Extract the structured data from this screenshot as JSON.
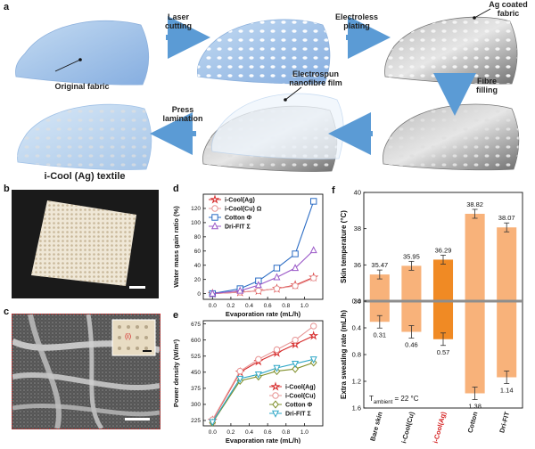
{
  "colors": {
    "fabric_blue": "#a9c6e8",
    "arrow_blue": "#5b9bd5",
    "metal_gray": "#8d8d8d",
    "bar_light": "#f8b27a",
    "bar_accent": "#f08a24",
    "red_dotted": "#d42020"
  },
  "panels": {
    "a": "a",
    "b": "b",
    "c": "c",
    "d": "d",
    "e": "e",
    "f": "f"
  },
  "panel_a": {
    "original_fabric": "Original fabric",
    "laser_cutting": "Laser cutting",
    "electroless_plating": "Electroless plating",
    "ag_coated_fabric": "Ag coated fabric",
    "fibre_filling": "Fibre filling",
    "electrospun_film": "Electrospun nanofibre film",
    "press_lamination": "Press lamination",
    "icool_textile": "i-Cool (Ag) textile"
  },
  "panel_c": {
    "inset_label": "(i)"
  },
  "chart_data": [
    {
      "id": "d",
      "type": "line",
      "title": "",
      "xlabel": "Evaporation rate (mL/h)",
      "ylabel": "Water mass gain ratio (%)",
      "xlim": [
        -0.1,
        1.2
      ],
      "ylim": [
        -8,
        140
      ],
      "xticks": [
        "0.0",
        "0.2",
        "0.4",
        "0.6",
        "0.8",
        "1.0"
      ],
      "yticks": [
        "0",
        "20",
        "40",
        "60",
        "80",
        "100",
        "120"
      ],
      "x": [
        0.0,
        0.3,
        0.5,
        0.7,
        0.9,
        1.1
      ],
      "series": [
        {
          "name": "i-Cool(Ag)",
          "marker": "star",
          "color": "#d62c2c",
          "filled": false,
          "values": [
            0,
            2,
            4,
            7,
            12,
            23
          ]
        },
        {
          "name": "i-Cool(Cu)",
          "marker": "circle",
          "color": "#e79494",
          "filled": false,
          "values": [
            0,
            2,
            4,
            7,
            11,
            22
          ]
        },
        {
          "name": "Cotton",
          "marker": "square",
          "color": "#2b6cc4",
          "filled": false,
          "values": [
            0,
            7,
            18,
            36,
            56,
            130
          ]
        },
        {
          "name": "Dri-FIT",
          "marker": "triangle",
          "color": "#9b59c8",
          "filled": false,
          "values": [
            0,
            4,
            12,
            23,
            36,
            61
          ]
        }
      ],
      "legend_suffixes": [
        "",
        "Ω",
        "Φ",
        "Σ"
      ]
    },
    {
      "id": "e",
      "type": "line",
      "title": "",
      "xlabel": "Evaporation rate (mL/h)",
      "ylabel": "Power density (W/m²)",
      "xlim": [
        -0.1,
        1.2
      ],
      "ylim": [
        200,
        690
      ],
      "xticks": [
        "0.0",
        "0.2",
        "0.4",
        "0.6",
        "0.8",
        "1.0"
      ],
      "yticks": [
        "225",
        "300",
        "375",
        "450",
        "525",
        "600",
        "675"
      ],
      "x": [
        0.0,
        0.3,
        0.5,
        0.7,
        0.9,
        1.1
      ],
      "series": [
        {
          "name": "i-Cool(Ag)",
          "marker": "star",
          "color": "#d62c2c",
          "filled": false,
          "values": [
            225,
            450,
            500,
            540,
            580,
            620
          ]
        },
        {
          "name": "i-Cool(Cu)",
          "marker": "circle",
          "color": "#e79494",
          "filled": false,
          "values": [
            228,
            455,
            510,
            555,
            600,
            665
          ]
        },
        {
          "name": "Cotton",
          "marker": "diamond",
          "color": "#7f8f2a",
          "filled": false,
          "values": [
            215,
            410,
            430,
            455,
            465,
            495
          ]
        },
        {
          "name": "Dri-FIT",
          "marker": "triangle-down",
          "color": "#2fa7c7",
          "filled": false,
          "values": [
            218,
            420,
            440,
            470,
            490,
            510
          ]
        }
      ],
      "legend_suffixes": [
        "",
        "",
        "Φ",
        "Σ"
      ]
    },
    {
      "id": "f",
      "type": "bar",
      "title": "",
      "categories": [
        "Bare skin",
        "i-Cool(Cu)",
        "i-Cool(Ag)",
        "Cotton",
        "Dri-FIT"
      ],
      "category_colors": [
        "#222222",
        "#222222",
        "#d42020",
        "#222222",
        "#222222"
      ],
      "bar_colors": [
        "#f8b27a",
        "#f8b27a",
        "#f08a24",
        "#f8b27a",
        "#f8b27a"
      ],
      "top": {
        "ylabel": "Skin temperature (°C)",
        "ylim": [
          34,
          40
        ],
        "yticks": [
          "34",
          "36",
          "38",
          "40"
        ],
        "values": [
          35.47,
          35.95,
          36.29,
          38.82,
          38.07
        ],
        "labels": [
          "35.47",
          "35.95",
          "36.29",
          "38.82",
          "38.07"
        ]
      },
      "bottom": {
        "ylabel": "Extra sweating rate (mL/h)",
        "ylim": [
          0,
          1.6
        ],
        "yticks": [
          "0.0",
          "0.4",
          "0.8",
          "1.2",
          "1.6"
        ],
        "values": [
          0.31,
          0.46,
          0.57,
          1.38,
          1.14
        ],
        "labels": [
          "0.31",
          "0.46",
          "0.57",
          "1.38",
          "1.14"
        ]
      },
      "annotation": "T_ambient = 22 °C",
      "annotation_main": "T",
      "annotation_sub": "ambient",
      "annotation_rest": " = 22 °C"
    }
  ]
}
